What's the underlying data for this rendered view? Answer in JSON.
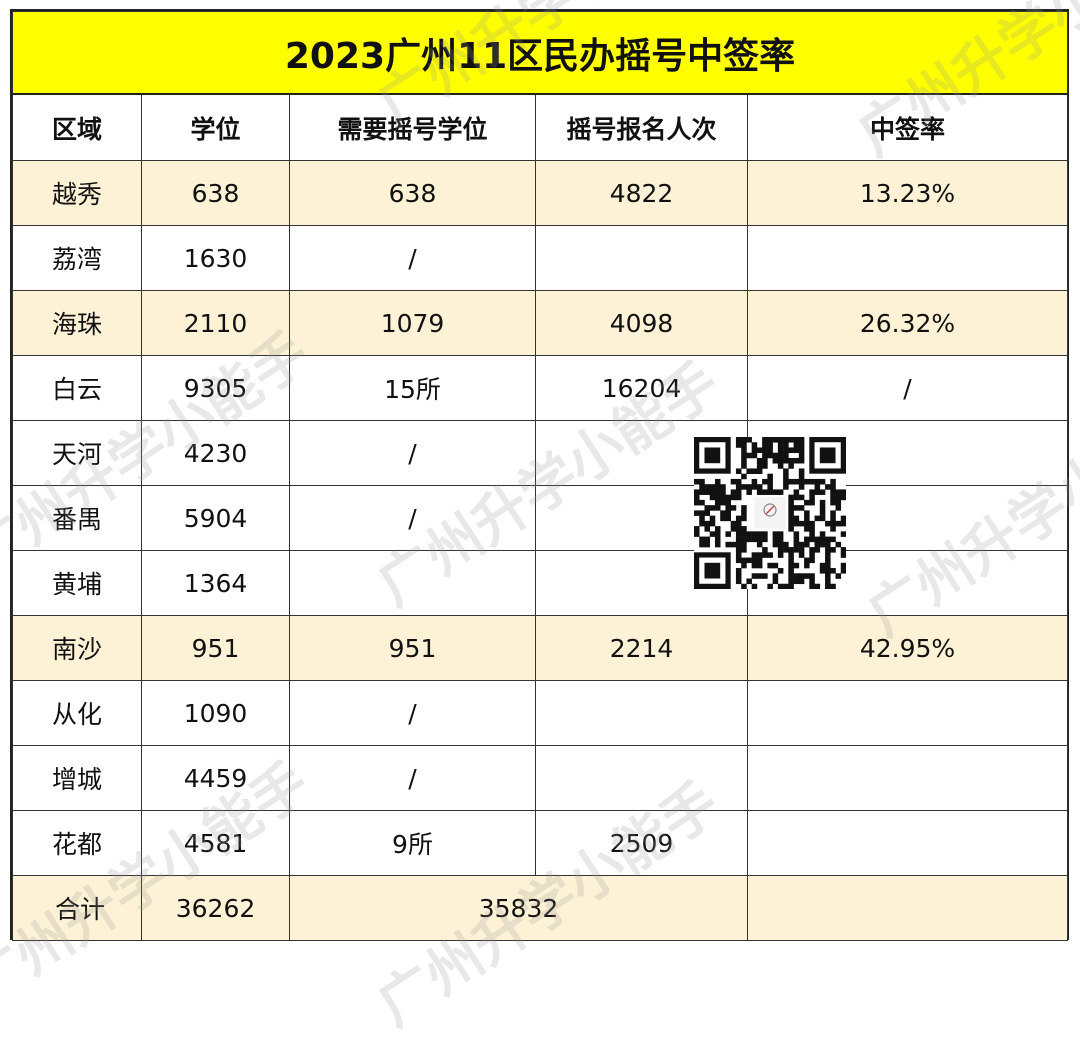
{
  "title": "2023广州11区民办摇号中签率",
  "headers": [
    "区域",
    "学位",
    "需要摇号学位",
    "摇号报名人次",
    "中签率"
  ],
  "rows": [
    [
      "越秀",
      "638",
      "638",
      "4822",
      "13.23%"
    ],
    [
      "荔湾",
      "1630",
      "/",
      "",
      ""
    ],
    [
      "海珠",
      "2110",
      "1079",
      "4098",
      "26.32%"
    ],
    [
      "白云",
      "9305",
      "15所",
      "16204",
      "/"
    ],
    [
      "天河",
      "4230",
      "/",
      "",
      ""
    ],
    [
      "番禺",
      "5904",
      "/",
      "",
      ""
    ],
    [
      "黄埔",
      "1364",
      "",
      "",
      ""
    ],
    [
      "南沙",
      "951",
      "951",
      "2214",
      "42.95%"
    ],
    [
      "从化",
      "1090",
      "/",
      "",
      ""
    ],
    [
      "增城",
      "4459",
      "/",
      "",
      ""
    ],
    [
      "花都",
      "4581",
      "9所",
      "2509",
      ""
    ]
  ],
  "total": {
    "label": "合计",
    "seats": "36262",
    "lottery_span": "35832",
    "rate": ""
  },
  "watermark": "广州升学小能手",
  "colors": {
    "title_bg": "#ffff00",
    "highlight_row": "#fef2d6"
  }
}
